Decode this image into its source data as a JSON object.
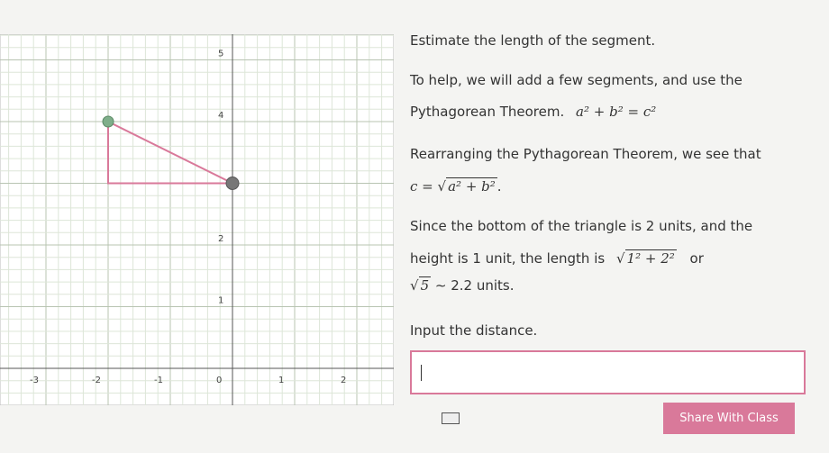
{
  "graph": {
    "x_labels": [
      "-3",
      "-2",
      "-1",
      "0",
      "1",
      "2"
    ],
    "y_labels": [
      "5",
      "4",
      "2",
      "1"
    ]
  },
  "lesson": {
    "prompt": "Estimate the length of the segment.",
    "line1": "To help, we will add a few segments, and use the",
    "line2": "Pythagorean Theorem.",
    "formula1": "a² + b² = c²",
    "line3": "Rearranging the Pythagorean Theorem, we see that",
    "formula2_lhs": "c =",
    "radical": "√",
    "formula2_radicand": "a² + b²",
    "period": ".",
    "line4": "Since the bottom of the triangle is 2 units, and the",
    "line5": "height is 1 unit, the length is",
    "formula3_radicand": "1² + 2²",
    "or": "or",
    "formula4_radicand": "5",
    "line6": "∼ 2.2 units.",
    "line7": "Input the distance."
  },
  "share_button": "Share With Class"
}
